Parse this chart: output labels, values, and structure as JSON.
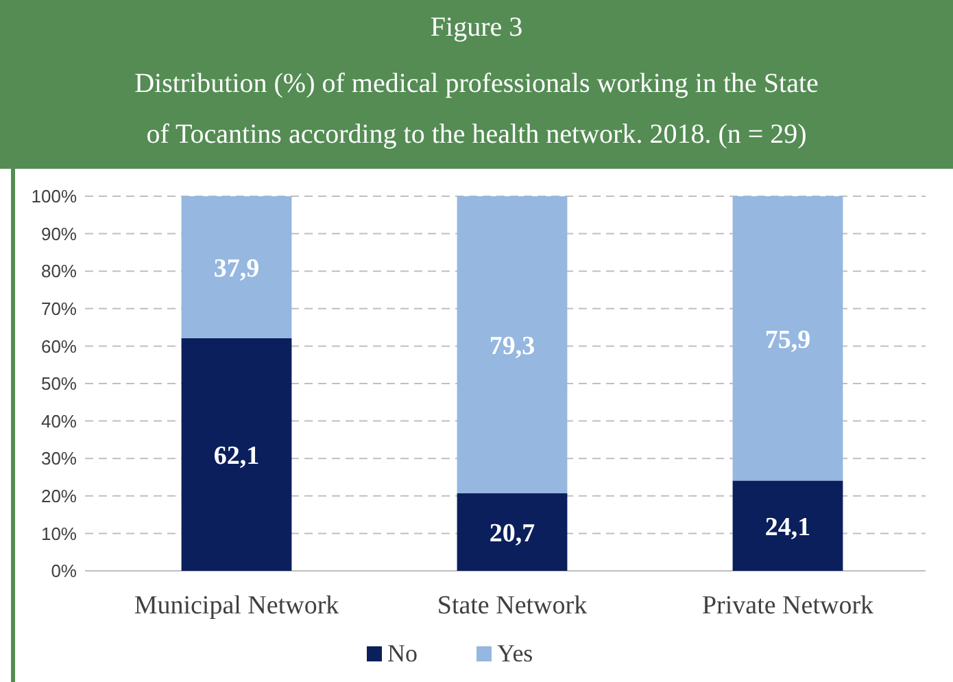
{
  "chart_data": {
    "type": "bar",
    "title": "Figure 3",
    "subtitle": "Distribution (%) of medical professionals working in the State of Tocantins according to the health network. 2018. (n = 29)",
    "categories": [
      "Municipal Network",
      "State Network",
      "Private Network"
    ],
    "stacked": true,
    "series": [
      {
        "name": "No",
        "color": "#0b1f5c",
        "values": [
          62.1,
          20.7,
          24.1
        ],
        "value_labels": [
          "62,1",
          "20,7",
          "24,1"
        ]
      },
      {
        "name": "Yes",
        "color": "#95b7e0",
        "values": [
          37.9,
          79.3,
          75.9
        ],
        "value_labels": [
          "37,9",
          "79,3",
          "75,9"
        ]
      }
    ],
    "ylim": [
      0,
      100
    ],
    "yticks": [
      {
        "value": 0,
        "label": "0%"
      },
      {
        "value": 10,
        "label": "10%"
      },
      {
        "value": 20,
        "label": "20%"
      },
      {
        "value": 30,
        "label": "30%"
      },
      {
        "value": 40,
        "label": "40%"
      },
      {
        "value": 50,
        "label": "50%"
      },
      {
        "value": 60,
        "label": "60%"
      },
      {
        "value": 70,
        "label": "70%"
      },
      {
        "value": 80,
        "label": "80%"
      },
      {
        "value": 90,
        "label": "90%"
      },
      {
        "value": 100,
        "label": "100%"
      }
    ],
    "grid": "y",
    "legend": "bottom"
  }
}
